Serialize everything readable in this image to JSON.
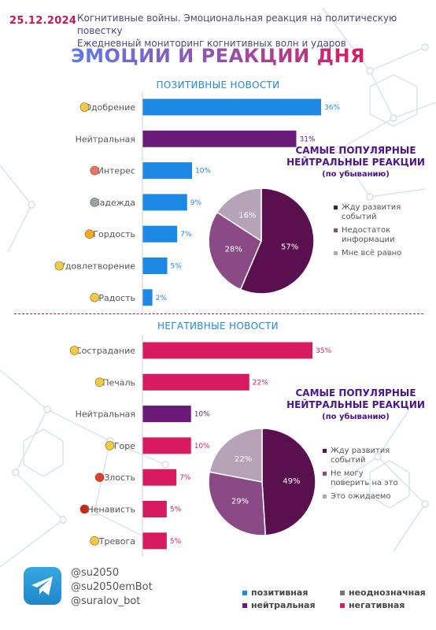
{
  "header": {
    "date": "25.12.2024",
    "subtitle_line1": "Когнитивные войны. Эмоциональная реакция на политическую повестку",
    "subtitle_line2": "Ежедневный мониторинг когнитивных волн и ударов"
  },
  "main_title": "ЭМОЦИИ И РЕАКЦИИ ДНЯ",
  "colors": {
    "positive": "#1e88e5",
    "neutral": "#6a1b7a",
    "ambiguous": "#757575",
    "negative": "#d81b60",
    "pie_dark": "#5a0f4e",
    "pie_mid": "#8a4a86",
    "pie_light": "#b7a3b8"
  },
  "chart_data": [
    {
      "type": "bar",
      "title": "ПОЗИТИВНЫЕ НОВОСТИ",
      "categories": [
        "Одобрение",
        "Нейтральная",
        "Интерес",
        "Надежда",
        "Гордость",
        "Удовлетворение",
        "Радость"
      ],
      "icons": [
        "smile-heart-icon",
        "",
        "question-icon",
        "hands-icon",
        "trophy-icon",
        "smile-icon",
        "grin-icon"
      ],
      "values": [
        36,
        31,
        10,
        9,
        7,
        5,
        2
      ],
      "labels": [
        "36%",
        "31%",
        "10%",
        "9%",
        "7%",
        "5%",
        "2%"
      ],
      "kinds": [
        "positive",
        "neutral",
        "positive",
        "positive",
        "positive",
        "positive",
        "positive"
      ],
      "xlim": [
        0,
        36
      ]
    },
    {
      "type": "pie",
      "title": "САМЫЕ ПОПУЛЯРНЫЕ НЕЙТРАЛЬНЫЕ РЕАКЦИИ",
      "subtitle": "(по убыванию)",
      "slices": [
        {
          "label": "Жду развития событий",
          "value": 57,
          "text": "57%",
          "color": "#5a0f4e"
        },
        {
          "label": "Недостаток информации",
          "value": 28,
          "text": "28%",
          "color": "#8a4a86"
        },
        {
          "label": "Мне всё равно",
          "value": 16,
          "text": "16%",
          "color": "#b7a3b8"
        }
      ],
      "legend": "right"
    },
    {
      "type": "bar",
      "title": "НЕГАТИВНЫЕ НОВОСТИ",
      "categories": [
        "Сострадание",
        "Печаль",
        "Нейтральная",
        "Горе",
        "Злость",
        "Ненависть",
        "Тревога"
      ],
      "icons": [
        "sweat-icon",
        "sad-icon",
        "",
        "cry-icon",
        "angry-icon",
        "rage-icon",
        "worried-icon"
      ],
      "values": [
        35,
        22,
        10,
        10,
        7,
        5,
        5
      ],
      "labels": [
        "35%",
        "22%",
        "10%",
        "10%",
        "7%",
        "5%",
        "5%"
      ],
      "kinds": [
        "negative",
        "negative",
        "neutral",
        "negative",
        "negative",
        "negative",
        "negative"
      ],
      "xlim": [
        0,
        35
      ]
    },
    {
      "type": "pie",
      "title": "САМЫЕ ПОПУЛЯРНЫЕ НЕЙТРАЛЬНЫЕ РЕАКЦИИ",
      "subtitle": "(по убыванию)",
      "slices": [
        {
          "label": "Жду развития событий",
          "value": 49,
          "text": "49%",
          "color": "#5a0f4e"
        },
        {
          "label": "Не могу поверить на это",
          "value": 29,
          "text": "29%",
          "color": "#8a4a86"
        },
        {
          "label": "Это ожидаемо",
          "value": 22,
          "text": "22%",
          "color": "#b7a3b8"
        }
      ],
      "legend": "right"
    }
  ],
  "footer": {
    "icon": "telegram-icon",
    "handles": [
      "@su2050",
      "@su2050emBot",
      "@suralov_bot"
    ],
    "legend": [
      {
        "label": "позитивная",
        "color": "#1e88e5"
      },
      {
        "label": "неоднозначная",
        "color": "#757575"
      },
      {
        "label": "нейтральная",
        "color": "#6a1b7a"
      },
      {
        "label": "негативная",
        "color": "#d81b60"
      }
    ]
  }
}
